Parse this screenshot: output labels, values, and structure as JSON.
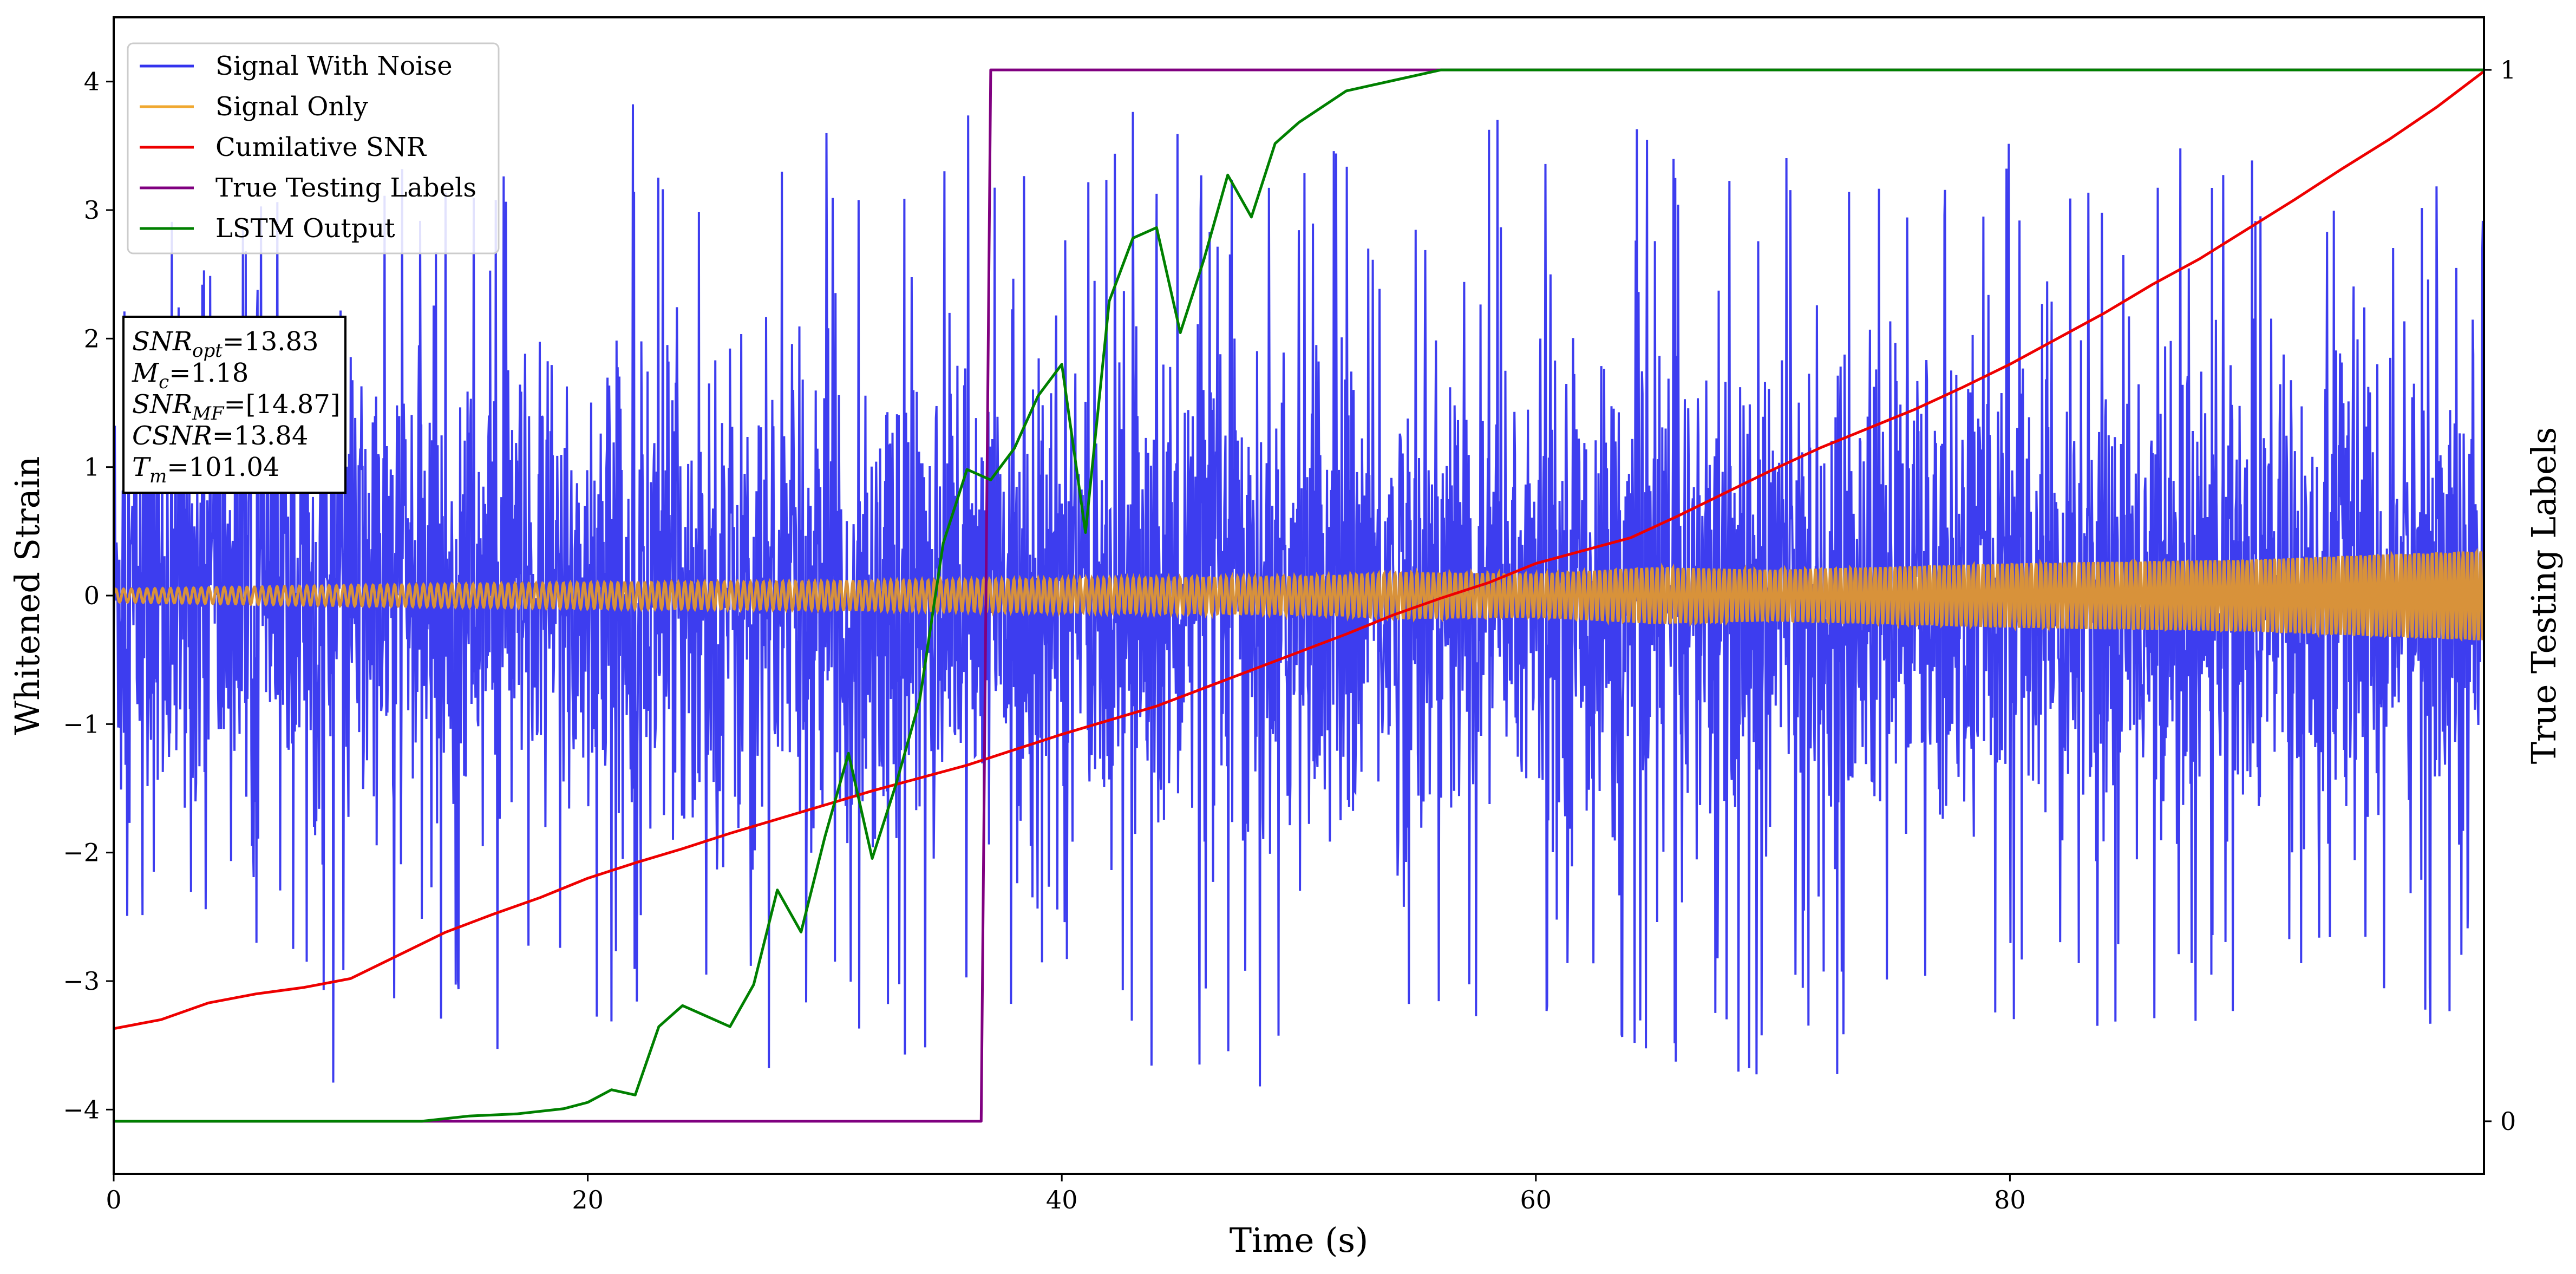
{
  "chart_data": {
    "type": "line",
    "xlabel": "Time (s)",
    "ylabel": "Whitened Strain",
    "y2label": "True Testing Labels",
    "xlim": [
      0,
      100
    ],
    "ylim": [
      -4.5,
      4.5
    ],
    "y2lim": [
      -0.05,
      1.05
    ],
    "xticks": [
      0,
      20,
      40,
      60,
      80
    ],
    "yticks": [
      -4,
      -3,
      -2,
      -1,
      0,
      1,
      2,
      3,
      4
    ],
    "y2ticks": [
      0,
      1
    ],
    "grid": false,
    "legend_position": "top-left",
    "series": [
      {
        "name": "Signal With Noise",
        "axis": "left",
        "color": "#3333ee",
        "description": "dense high-frequency noise band, roughly -3.9 to 4.1 over entire time range",
        "envelope": {
          "x": [
            0,
            10,
            20,
            30,
            40,
            50,
            60,
            70,
            80,
            90,
            100
          ],
          "upper": [
            2.8,
            3.3,
            3.9,
            3.6,
            3.9,
            3.5,
            3.8,
            3.4,
            3.9,
            3.6,
            3.3
          ],
          "lower": [
            -2.8,
            -3.9,
            -3.3,
            -3.8,
            -3.7,
            -3.9,
            -3.4,
            -3.8,
            -3.6,
            -3.3,
            -3.4
          ]
        }
      },
      {
        "name": "Signal Only",
        "axis": "left",
        "color": "#f0a830",
        "description": "chirp with slowly growing amplitude",
        "envelope": {
          "x": [
            0,
            10,
            20,
            30,
            40,
            50,
            55,
            60,
            65,
            70,
            80,
            90,
            100
          ],
          "amplitude": [
            0.05,
            0.08,
            0.1,
            0.11,
            0.13,
            0.15,
            0.18,
            0.17,
            0.22,
            0.2,
            0.25,
            0.28,
            0.35
          ]
        }
      },
      {
        "name": "Cumilative SNR",
        "axis": "left",
        "color": "#ee0000",
        "x": [
          0,
          2,
          4,
          6,
          8,
          10,
          12,
          14,
          16,
          18,
          20,
          22,
          24,
          26,
          28,
          30,
          32,
          34,
          36,
          38,
          40,
          42,
          44,
          46,
          48,
          50,
          52,
          54,
          56,
          58,
          60,
          62,
          64,
          66,
          68,
          70,
          72,
          74,
          76,
          78,
          80,
          82,
          84,
          86,
          88,
          90,
          92,
          94,
          96,
          98,
          100
        ],
        "y": [
          -3.37,
          -3.3,
          -3.17,
          -3.1,
          -3.05,
          -2.98,
          -2.8,
          -2.62,
          -2.48,
          -2.35,
          -2.2,
          -2.08,
          -1.97,
          -1.85,
          -1.74,
          -1.63,
          -1.52,
          -1.42,
          -1.32,
          -1.2,
          -1.08,
          -0.97,
          -0.86,
          -0.72,
          -0.58,
          -0.44,
          -0.3,
          -0.15,
          -0.02,
          0.1,
          0.25,
          0.35,
          0.45,
          0.62,
          0.8,
          0.98,
          1.15,
          1.3,
          1.45,
          1.62,
          1.8,
          2.0,
          2.2,
          2.42,
          2.62,
          2.85,
          3.08,
          3.32,
          3.55,
          3.8,
          4.08
        ]
      },
      {
        "name": "True Testing Labels",
        "axis": "right",
        "color": "#800080",
        "x": [
          0,
          36.6,
          37.0,
          100
        ],
        "y": [
          0,
          0,
          1,
          1
        ]
      },
      {
        "name": "LSTM Output",
        "axis": "right",
        "color": "#008000",
        "x": [
          0,
          13,
          15,
          17,
          19,
          20,
          21,
          22,
          23,
          24,
          25,
          26,
          27,
          28,
          29,
          30,
          31,
          32,
          33,
          34,
          35,
          36,
          37,
          38,
          39,
          40,
          41,
          42,
          43,
          44,
          45,
          46,
          47,
          48,
          49,
          50,
          52,
          54,
          56,
          58,
          60,
          70,
          80,
          90,
          100
        ],
        "y": [
          0,
          0,
          0.005,
          0.007,
          0.012,
          0.018,
          0.03,
          0.025,
          0.09,
          0.11,
          0.1,
          0.09,
          0.13,
          0.22,
          0.18,
          0.27,
          0.35,
          0.25,
          0.32,
          0.4,
          0.55,
          0.62,
          0.61,
          0.64,
          0.69,
          0.72,
          0.56,
          0.78,
          0.84,
          0.85,
          0.75,
          0.82,
          0.9,
          0.86,
          0.93,
          0.95,
          0.98,
          0.99,
          1.0,
          1.0,
          1.0,
          1.0,
          1.0,
          1.0,
          1.0
        ]
      }
    ]
  },
  "annotation": {
    "lines": [
      {
        "base": "SNR",
        "sub": "opt",
        "text": "=13.83"
      },
      {
        "base": "M",
        "sub": "c",
        "text": "=1.18"
      },
      {
        "base": "SNR",
        "sub": "MF",
        "text": "=[14.87]"
      },
      {
        "base": "CSNR",
        "sub": "",
        "text": "=13.84"
      },
      {
        "base": "T",
        "sub": "m",
        "text": "=101.04"
      }
    ]
  }
}
